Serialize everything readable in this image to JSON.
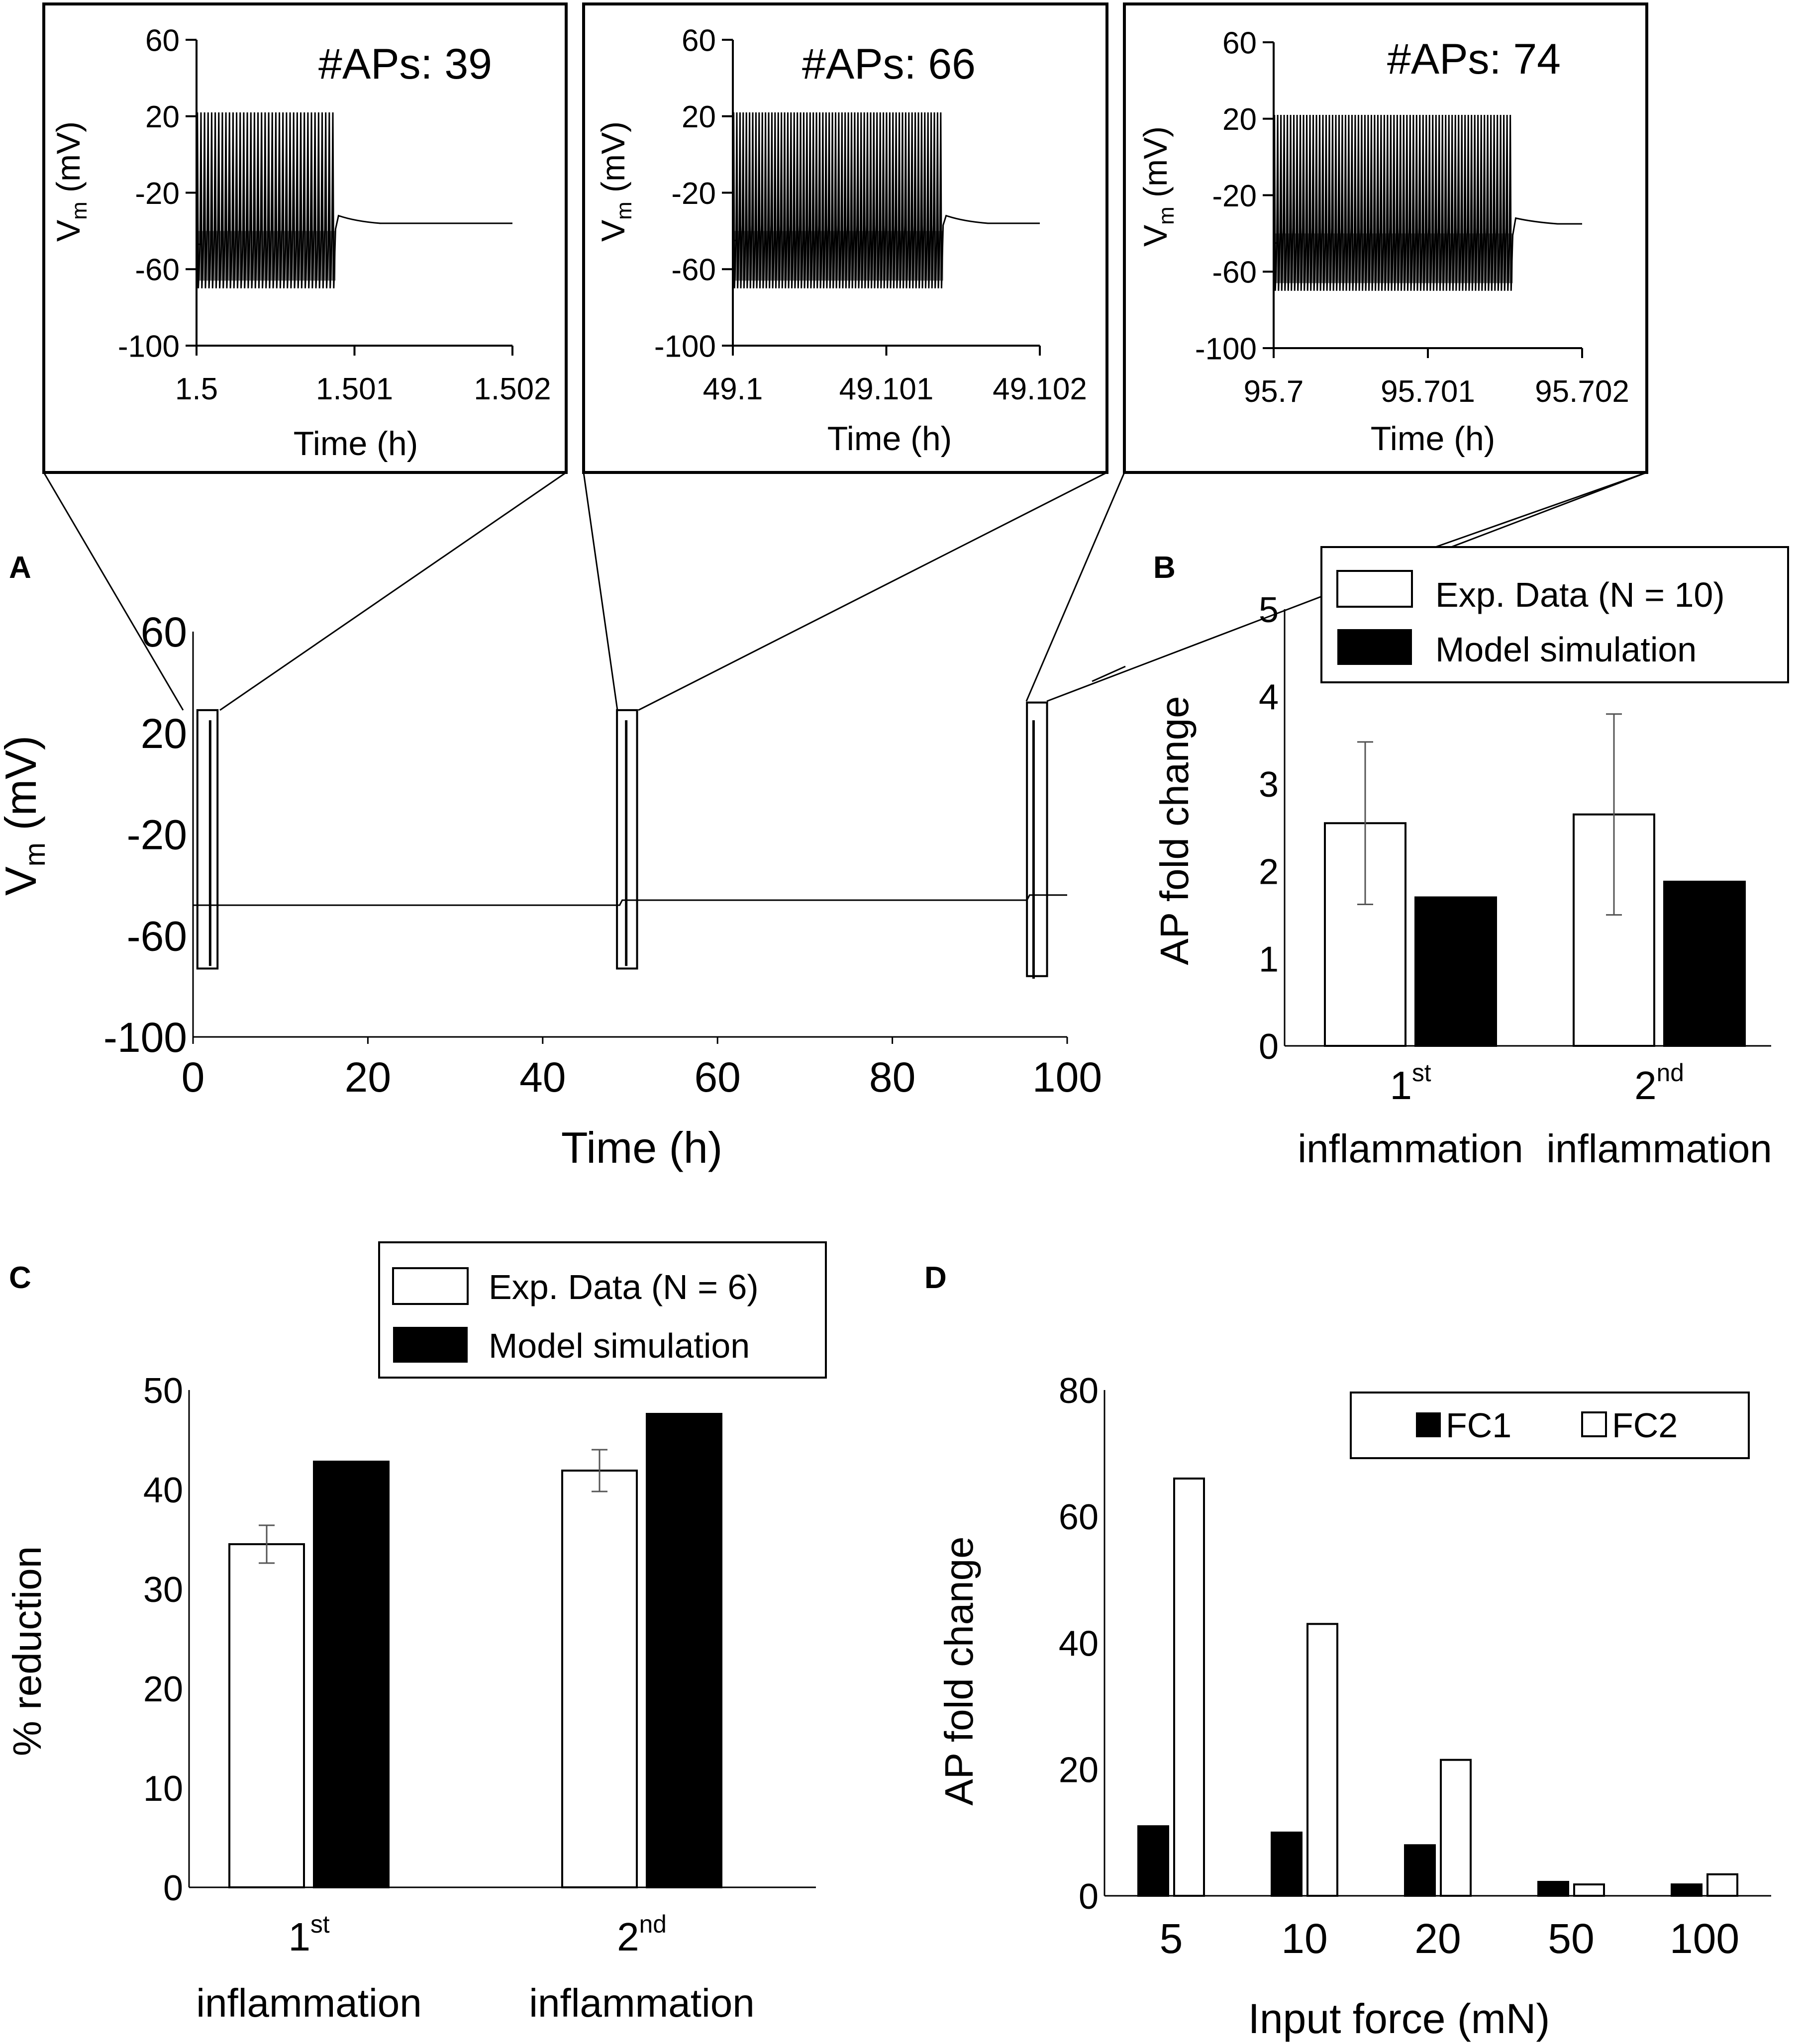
{
  "panel_labels": {
    "a": "A",
    "b": "B",
    "c": "C",
    "d": "D"
  },
  "vm_unit_prefix": "V",
  "vm_unit_sub": "m",
  "vm_unit_suffix": " (mV)",
  "chart_data": [
    {
      "id": "inset1",
      "type": "line",
      "title": "#APs: 39",
      "xlabel": "Time (h)",
      "ylabel": "Vm (mV)",
      "xlim": [
        1.5,
        1.502
      ],
      "ylim": [
        -100,
        60
      ],
      "xticks": [
        "1.5",
        "1.501",
        "1.502"
      ],
      "yticks": [
        "60",
        "20",
        "-20",
        "-60",
        "-100"
      ],
      "trace": {
        "t_start": 1.5,
        "t_end": 1.50088,
        "spikes": 39,
        "peak": 22,
        "trough": -70,
        "rest_before": -47,
        "after_spike": -32,
        "plateau": -36
      }
    },
    {
      "id": "inset2",
      "type": "line",
      "title": "#APs: 66",
      "xlabel": "Time (h)",
      "ylabel": "Vm (mV)",
      "xlim": [
        49.1,
        49.102
      ],
      "ylim": [
        -100,
        60
      ],
      "xticks": [
        "49.1",
        "49.101",
        "49.102"
      ],
      "yticks": [
        "60",
        "20",
        "-20",
        "-60",
        "-100"
      ],
      "trace": {
        "t_start": 49.1,
        "t_end": 49.10137,
        "spikes": 66,
        "peak": 22,
        "trough": -70,
        "rest_before": -45,
        "after_spike": -32,
        "plateau": -36
      }
    },
    {
      "id": "inset3",
      "type": "line",
      "title": "#APs: 74",
      "xlabel": "Time (h)",
      "ylabel": "Vm (mV)",
      "xlim": [
        95.7,
        95.702
      ],
      "ylim": [
        -100,
        60
      ],
      "xticks": [
        "95.7",
        "95.701",
        "95.702"
      ],
      "yticks": [
        "60",
        "20",
        "-20",
        "-60",
        "-100"
      ],
      "trace": {
        "t_start": 95.7,
        "t_end": 95.70155,
        "spikes": 74,
        "peak": 22,
        "trough": -70,
        "rest_before": -45,
        "after_spike": -32,
        "plateau": -35
      }
    },
    {
      "id": "A",
      "type": "line",
      "xlabel": "Time (h)",
      "ylabel": "Vm (mV)",
      "xlim": [
        0,
        100
      ],
      "ylim": [
        -100,
        60
      ],
      "xticks": [
        "0",
        "20",
        "40",
        "60",
        "80",
        "100"
      ],
      "yticks": [
        "60",
        "20",
        "-20",
        "-60",
        "-100"
      ],
      "baseline": [
        [
          0,
          -48
        ],
        [
          48.8,
          -48
        ],
        [
          49.1,
          -46
        ],
        [
          95.4,
          -46
        ],
        [
          95.7,
          -44
        ],
        [
          100,
          -44
        ]
      ],
      "spike_bursts": [
        {
          "t": 1.5,
          "low": -72,
          "high": 25
        },
        {
          "t": 49.1,
          "low": -72,
          "high": 25
        },
        {
          "t": 95.7,
          "low": -77,
          "high": 25
        }
      ],
      "zoom_boxes": [
        {
          "t0": 0.5,
          "t1": 2.8,
          "low": -73,
          "high": 29
        },
        {
          "t0": 48.5,
          "t1": 50.8,
          "low": -73,
          "high": 29
        },
        {
          "t0": 95.4,
          "t1": 97.7,
          "low": -76,
          "high": 32
        }
      ]
    },
    {
      "id": "B",
      "type": "bar",
      "categories": [
        "1st inflammation",
        "2nd inflammation"
      ],
      "cat_base": [
        "1",
        "2"
      ],
      "cat_sup": [
        "st",
        "nd"
      ],
      "cat_word": "inflammation",
      "ylabel": "AP fold change",
      "ylim": [
        0,
        5
      ],
      "yticks": [
        "0",
        "1",
        "2",
        "3",
        "4",
        "5"
      ],
      "series": [
        {
          "name": "Exp. Data (N = 10)",
          "values": [
            2.55,
            2.65
          ],
          "errors": [
            0.93,
            1.15
          ],
          "color": "#ffffff"
        },
        {
          "name": "Model simulation",
          "values": [
            1.7,
            1.88
          ],
          "color": "#000000"
        }
      ]
    },
    {
      "id": "C",
      "type": "bar",
      "categories": [
        "1st inflammation",
        "2nd inflammation"
      ],
      "cat_base": [
        "1",
        "2"
      ],
      "cat_sup": [
        "st",
        "nd"
      ],
      "cat_word": "inflammation",
      "ylabel": "% reduction",
      "ylim": [
        0,
        50
      ],
      "yticks": [
        "0",
        "10",
        "20",
        "30",
        "40",
        "50"
      ],
      "series": [
        {
          "name": "Exp. Data (N = 6)",
          "values": [
            34.5,
            41.9
          ],
          "errors": [
            1.9,
            2.1
          ],
          "color": "#ffffff"
        },
        {
          "name": "Model simulation",
          "values": [
            42.8,
            47.6
          ],
          "color": "#000000"
        }
      ]
    },
    {
      "id": "D",
      "type": "bar",
      "categories": [
        "5",
        "10",
        "20",
        "50",
        "100"
      ],
      "xlabel": "Input force (mN)",
      "ylabel": "AP fold change",
      "ylim": [
        0,
        80
      ],
      "yticks": [
        "0",
        "20",
        "40",
        "60",
        "80"
      ],
      "series": [
        {
          "name": "FC1",
          "values": [
            11,
            10,
            8,
            2.2,
            1.8
          ],
          "color": "#000000"
        },
        {
          "name": "FC2",
          "values": [
            66,
            43,
            21.5,
            1.8,
            3.4
          ],
          "color": "#ffffff"
        }
      ]
    }
  ]
}
